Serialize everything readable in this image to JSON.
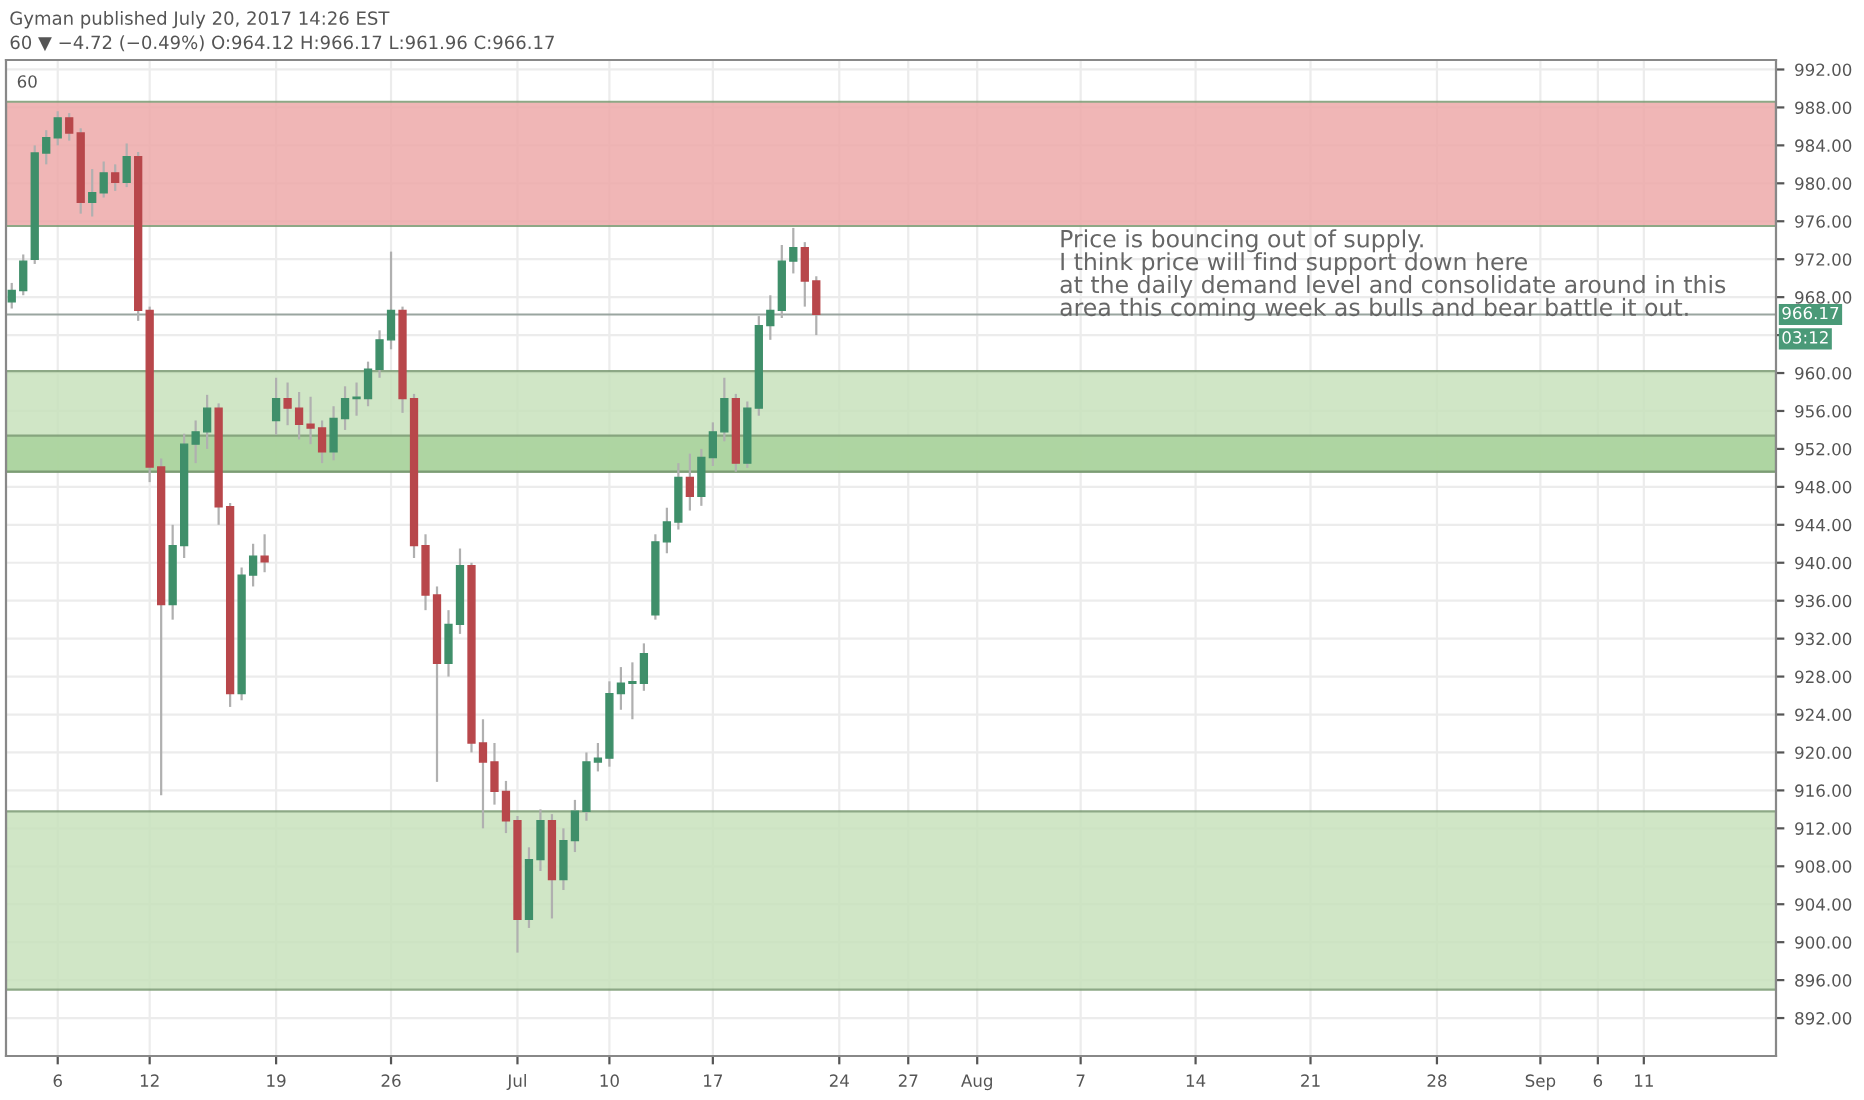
{
  "chart_data": {
    "type": "candlestick",
    "title": "Gyman published July 20, 2017 14:26 EST",
    "subtitle": "60 ▼ −4.72 (−0.49%) O:964.12 H:966.17 L:961.96 C:966.17",
    "annotations": [
      "60",
      "Price is bouncing out of supply.\nI think price will find support down here\nat the daily demand level and consolidate around in this\narea this coming week as bulls and bear battle it out.",
      "03:12"
    ],
    "categories": [
      null,
      null,
      null,
      null,
      "6",
      null,
      null,
      null,
      null,
      null,
      null,
      null,
      "12",
      null,
      null,
      null,
      null,
      null,
      null,
      null,
      null,
      null,
      null,
      "19",
      null,
      null,
      null,
      null,
      null,
      null,
      null,
      null,
      null,
      "26",
      null,
      null,
      null,
      null,
      null,
      null,
      null,
      null,
      null,
      null,
      "Jul",
      null,
      null,
      null,
      null,
      null,
      null,
      null,
      "10",
      null,
      null,
      null,
      null,
      null,
      null,
      null,
      null,
      "17",
      null,
      null,
      null,
      null,
      null,
      null,
      null,
      null,
      null,
      null,
      "24",
      null,
      null,
      null,
      null,
      null,
      "27",
      null,
      null,
      null,
      null,
      null,
      "Aug",
      null,
      null,
      null,
      null,
      null,
      null,
      null,
      null,
      "7",
      null,
      null,
      null,
      null,
      null,
      null,
      null,
      null,
      null,
      "14",
      null,
      null,
      null,
      null,
      null,
      null,
      null,
      null,
      null,
      "21",
      null,
      null,
      null,
      null,
      null,
      null,
      null,
      null,
      null,
      null,
      "28",
      null,
      null,
      null,
      null,
      null,
      null,
      null,
      null,
      "Sep",
      null,
      null,
      null,
      null,
      "6",
      null,
      null,
      null,
      "11",
      null,
      null,
      null,
      null,
      null,
      null,
      null,
      null,
      null,
      null,
      null
    ],
    "ohlc": [
      [
        967.5,
        969.5,
        966.8,
        968.7
      ],
      [
        968.7,
        972.5,
        968.2,
        971.8
      ],
      [
        972.0,
        984.0,
        971.5,
        983.2
      ],
      [
        983.2,
        985.6,
        982.0,
        984.8
      ],
      [
        984.8,
        987.6,
        984.0,
        986.9
      ],
      [
        986.9,
        987.4,
        984.5,
        985.3
      ],
      [
        985.3,
        985.8,
        976.8,
        978.0
      ],
      [
        978.0,
        981.5,
        976.5,
        979.0
      ],
      [
        979.0,
        982.3,
        978.5,
        981.1
      ],
      [
        981.1,
        982.0,
        979.2,
        980.1
      ],
      [
        980.1,
        984.2,
        979.6,
        982.8
      ],
      [
        982.8,
        983.3,
        965.5,
        966.6
      ],
      [
        966.6,
        967.0,
        948.5,
        950.1
      ],
      [
        950.1,
        951.0,
        915.5,
        935.6
      ],
      [
        935.6,
        944.0,
        934.0,
        941.8
      ],
      [
        941.8,
        953.6,
        940.5,
        952.5
      ],
      [
        952.5,
        955.0,
        950.5,
        953.8
      ],
      [
        953.8,
        957.7,
        952.0,
        956.3
      ],
      [
        956.3,
        956.8,
        944.0,
        945.9
      ],
      [
        945.9,
        946.3,
        924.8,
        926.2
      ],
      [
        926.2,
        939.5,
        925.5,
        938.7
      ],
      [
        938.7,
        942.0,
        937.5,
        940.7
      ],
      [
        940.7,
        943.0,
        939.0,
        940.1
      ],
      [
        955.0,
        959.5,
        953.5,
        957.3
      ],
      [
        957.3,
        959.0,
        954.5,
        956.3
      ],
      [
        956.3,
        958.0,
        953.0,
        954.6
      ],
      [
        954.6,
        957.5,
        952.5,
        954.2
      ],
      [
        954.2,
        955.0,
        950.5,
        951.7
      ],
      [
        951.7,
        956.5,
        950.8,
        955.2
      ],
      [
        955.2,
        958.6,
        954.0,
        957.3
      ],
      [
        957.3,
        959.0,
        955.5,
        957.3
      ],
      [
        957.3,
        961.2,
        956.5,
        960.4
      ],
      [
        960.4,
        964.5,
        959.5,
        963.5
      ],
      [
        963.5,
        972.8,
        962.5,
        966.6
      ],
      [
        966.6,
        967.0,
        955.8,
        957.3
      ],
      [
        957.3,
        957.8,
        940.5,
        941.8
      ],
      [
        941.8,
        943.0,
        935.0,
        936.6
      ],
      [
        936.6,
        937.5,
        916.9,
        929.4
      ],
      [
        929.4,
        935.0,
        928.0,
        933.5
      ],
      [
        933.5,
        941.5,
        932.5,
        939.7
      ],
      [
        939.7,
        940.0,
        920.0,
        921.0
      ],
      [
        921.0,
        923.5,
        912.0,
        919.0
      ],
      [
        919.0,
        921.0,
        914.5,
        915.9
      ],
      [
        915.9,
        917.0,
        911.5,
        912.8
      ],
      [
        912.8,
        913.3,
        898.9,
        902.4
      ],
      [
        902.4,
        910.0,
        901.5,
        908.7
      ],
      [
        908.7,
        914.0,
        907.5,
        912.8
      ],
      [
        912.8,
        913.5,
        902.5,
        906.6
      ],
      [
        906.6,
        912.0,
        905.5,
        910.7
      ],
      [
        910.7,
        915.0,
        909.5,
        913.8
      ],
      [
        913.8,
        920.0,
        912.8,
        919.0
      ],
      [
        919.0,
        921.0,
        918.0,
        919.4
      ],
      [
        919.4,
        927.5,
        918.5,
        926.2
      ],
      [
        926.2,
        929.0,
        924.5,
        927.3
      ],
      [
        927.3,
        929.5,
        923.5,
        927.3
      ],
      [
        927.3,
        931.5,
        926.5,
        930.4
      ],
      [
        934.5,
        943.0,
        934.0,
        942.2
      ],
      [
        942.2,
        945.8,
        941.0,
        944.3
      ],
      [
        944.3,
        950.5,
        943.5,
        949.0
      ],
      [
        949.0,
        951.5,
        945.5,
        947.0
      ],
      [
        947.0,
        952.0,
        946.0,
        951.1
      ],
      [
        951.1,
        954.8,
        950.2,
        953.8
      ],
      [
        953.8,
        959.5,
        952.8,
        957.3
      ],
      [
        957.3,
        957.8,
        949.6,
        950.5
      ],
      [
        950.5,
        957.0,
        950.0,
        956.3
      ],
      [
        956.3,
        966.0,
        955.5,
        965.0
      ],
      [
        965.0,
        968.2,
        963.5,
        966.6
      ],
      [
        966.6,
        973.5,
        965.8,
        971.8
      ],
      [
        971.8,
        975.3,
        970.5,
        973.2
      ],
      [
        973.2,
        973.8,
        967.0,
        969.7
      ],
      [
        969.7,
        970.2,
        964.0,
        966.2
      ],
      null,
      null,
      null,
      null,
      null,
      null,
      null,
      null,
      null,
      null,
      null,
      null,
      null,
      null,
      null,
      null,
      null,
      null,
      null,
      null,
      null,
      null,
      null,
      null,
      null,
      null,
      null,
      null,
      null,
      null,
      null,
      null,
      null,
      null,
      null,
      null,
      null,
      null,
      null,
      null,
      null,
      null,
      null,
      null,
      null,
      null,
      null,
      null,
      null,
      null,
      null,
      null,
      null,
      null,
      null,
      null,
      null,
      null,
      null,
      null,
      null,
      null,
      null,
      null,
      null,
      null,
      null,
      null,
      null,
      null,
      null,
      null,
      null,
      null,
      null,
      null,
      null,
      null,
      null,
      null,
      null,
      null,
      null
    ],
    "ylim": [
      888,
      993
    ],
    "yticks": [
      {
        "value": 892,
        "label": "892.00"
      },
      {
        "value": 896,
        "label": "896.00"
      },
      {
        "value": 900,
        "label": "900.00"
      },
      {
        "value": 904,
        "label": "904.00"
      },
      {
        "value": 908,
        "label": "908.00"
      },
      {
        "value": 912,
        "label": "912.00"
      },
      {
        "value": 916,
        "label": "916.00"
      },
      {
        "value": 920,
        "label": "920.00"
      },
      {
        "value": 924,
        "label": "924.00"
      },
      {
        "value": 928,
        "label": "928.00"
      },
      {
        "value": 932,
        "label": "932.00"
      },
      {
        "value": 936,
        "label": "936.00"
      },
      {
        "value": 940,
        "label": "940.00"
      },
      {
        "value": 944,
        "label": "944.00"
      },
      {
        "value": 948,
        "label": "948.00"
      },
      {
        "value": 952,
        "label": "952.00"
      },
      {
        "value": 956,
        "label": "956.00"
      },
      {
        "value": 960,
        "label": "960.00"
      },
      {
        "value": 964,
        "label": null
      },
      {
        "value": 968,
        "label": "968.00"
      },
      {
        "value": 972,
        "label": "972.00"
      },
      {
        "value": 976,
        "label": "976.00"
      },
      {
        "value": 980,
        "label": "980.00"
      },
      {
        "value": 984,
        "label": "984.00"
      },
      {
        "value": 988,
        "label": "988.00"
      },
      {
        "value": 992,
        "label": "992.00"
      }
    ],
    "bands": [
      {
        "axis": "y",
        "from": 975.5,
        "to": 988.6,
        "color": "#eeaaaa"
      },
      {
        "axis": "y",
        "from": 949.6,
        "to": 960.2,
        "color": "#c8e2bd"
      },
      {
        "axis": "y",
        "from": 949.6,
        "to": 953.4,
        "color": "#a9d39c"
      },
      {
        "axis": "y",
        "from": 895.0,
        "to": 913.8,
        "color": "#c8e2bd"
      }
    ],
    "ref_lines": [
      {
        "axis": "y",
        "value": 966.17,
        "label": "966.17",
        "color": "#9aa5a0"
      }
    ],
    "grid": true
  }
}
